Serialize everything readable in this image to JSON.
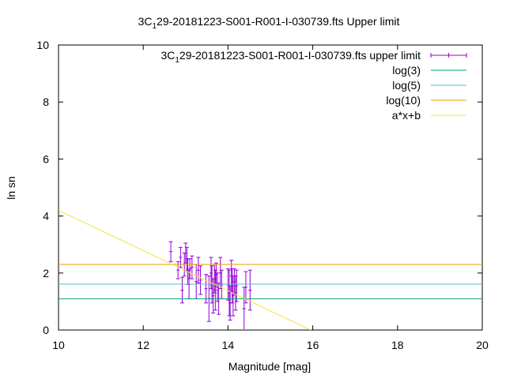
{
  "chart_data": {
    "type": "scatter",
    "title_parts": [
      "3C",
      "1",
      "29-20181223-S001-R001-I-030739.fts Upper limit"
    ],
    "xlabel": "Magnitude [mag]",
    "ylabel": "ln sn",
    "xlim": [
      10,
      20
    ],
    "ylim": [
      0,
      10
    ],
    "xticks": [
      10,
      12,
      14,
      16,
      18,
      20
    ],
    "yticks": [
      0,
      2,
      4,
      6,
      8,
      10
    ],
    "grid": false,
    "legend_position": "top-right",
    "series": [
      {
        "name_parts": [
          "3C",
          "1",
          "29-20181223-S001-R001-I-030739.fts upper limit"
        ],
        "kind": "errorbars",
        "color": "#9400d3",
        "points": [
          {
            "x": 12.65,
            "y": 2.75,
            "err": 0.35
          },
          {
            "x": 12.82,
            "y": 2.1,
            "err": 0.3
          },
          {
            "x": 12.88,
            "y": 2.55,
            "err": 0.35
          },
          {
            "x": 12.92,
            "y": 1.4,
            "err": 0.45
          },
          {
            "x": 12.97,
            "y": 2.3,
            "err": 0.4
          },
          {
            "x": 13.0,
            "y": 2.7,
            "err": 0.35
          },
          {
            "x": 13.03,
            "y": 2.5,
            "err": 0.4
          },
          {
            "x": 13.05,
            "y": 2.05,
            "err": 0.45
          },
          {
            "x": 13.08,
            "y": 1.6,
            "err": 0.5
          },
          {
            "x": 13.1,
            "y": 2.15,
            "err": 0.35
          },
          {
            "x": 13.15,
            "y": 2.2,
            "err": 0.4
          },
          {
            "x": 13.25,
            "y": 1.7,
            "err": 0.6
          },
          {
            "x": 13.3,
            "y": 2.1,
            "err": 0.45
          },
          {
            "x": 13.35,
            "y": 1.75,
            "err": 0.5
          },
          {
            "x": 13.48,
            "y": 1.45,
            "err": 0.5
          },
          {
            "x": 13.55,
            "y": 1.1,
            "err": 0.8
          },
          {
            "x": 13.6,
            "y": 2.0,
            "err": 0.55
          },
          {
            "x": 13.62,
            "y": 1.6,
            "err": 0.65
          },
          {
            "x": 13.65,
            "y": 1.2,
            "err": 0.6
          },
          {
            "x": 13.68,
            "y": 1.8,
            "err": 0.5
          },
          {
            "x": 13.7,
            "y": 1.4,
            "err": 0.7
          },
          {
            "x": 13.72,
            "y": 1.95,
            "err": 0.4
          },
          {
            "x": 13.75,
            "y": 1.5,
            "err": 0.5
          },
          {
            "x": 13.78,
            "y": 1.1,
            "err": 0.55
          },
          {
            "x": 13.82,
            "y": 2.0,
            "err": 0.55
          },
          {
            "x": 13.85,
            "y": 1.6,
            "err": 0.5
          },
          {
            "x": 14.0,
            "y": 1.6,
            "err": 0.55
          },
          {
            "x": 14.03,
            "y": 1.3,
            "err": 0.8
          },
          {
            "x": 14.05,
            "y": 0.95,
            "err": 0.6
          },
          {
            "x": 14.08,
            "y": 1.9,
            "err": 0.55
          },
          {
            "x": 14.1,
            "y": 1.55,
            "err": 0.6
          },
          {
            "x": 14.12,
            "y": 1.2,
            "err": 0.7
          },
          {
            "x": 14.15,
            "y": 1.7,
            "err": 0.45
          },
          {
            "x": 14.18,
            "y": 1.3,
            "err": 0.6
          },
          {
            "x": 14.2,
            "y": 1.55,
            "err": 0.55
          },
          {
            "x": 14.38,
            "y": 0.75,
            "err": 0.75
          },
          {
            "x": 14.42,
            "y": 1.5,
            "err": 0.55
          },
          {
            "x": 14.52,
            "y": 1.4,
            "err": 0.7
          }
        ]
      },
      {
        "name": "log(3)",
        "kind": "hline",
        "y": 1.0986,
        "color": "#009e73"
      },
      {
        "name": "log(5)",
        "kind": "hline",
        "y": 1.6094,
        "color": "#56b4e9"
      },
      {
        "name": "log(10)",
        "kind": "hline",
        "y": 2.3026,
        "color": "#e69f00"
      },
      {
        "name": "a*x+b",
        "kind": "line",
        "points": [
          [
            10,
            4.2
          ],
          [
            15.95,
            0
          ]
        ],
        "color": "#f0e442"
      }
    ]
  }
}
